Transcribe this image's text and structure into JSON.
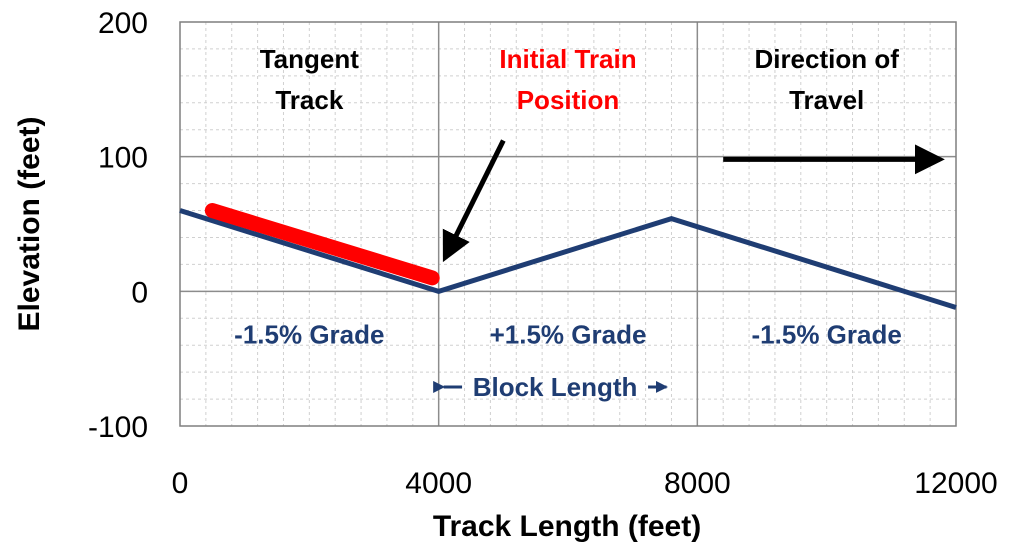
{
  "chart_data": {
    "type": "line",
    "xlabel": "Track Length (feet)",
    "ylabel": "Elevation (feet)",
    "xlim": [
      0,
      12000
    ],
    "ylim": [
      -100,
      200
    ],
    "x_ticks": [
      0,
      4000,
      8000,
      12000
    ],
    "x_tick_labels": [
      "0",
      "4000",
      "8000",
      "12000"
    ],
    "y_ticks": [
      -100,
      0,
      100,
      200
    ],
    "y_tick_labels": [
      "-100",
      "0",
      "100",
      "200"
    ],
    "grid": true,
    "minor_grid": true,
    "vertical_dividers": [
      4000,
      8000
    ],
    "series": [
      {
        "role": "track",
        "color": "#1f3d73",
        "x": [
          0,
          4000,
          7600,
          12000
        ],
        "y": [
          60,
          0,
          54,
          -12
        ]
      },
      {
        "role": "train",
        "color": "#ff0000",
        "x": [
          500,
          3900
        ],
        "y": [
          60,
          10
        ]
      }
    ],
    "annotations": {
      "region_titles": [
        {
          "x": 2000,
          "y": 166,
          "lines": [
            "Tangent",
            "Track"
          ],
          "color": "#000000"
        },
        {
          "x": 6000,
          "y": 166,
          "lines": [
            "Initial Train",
            "Position"
          ],
          "color": "#ff0000"
        },
        {
          "x": 10000,
          "y": 166,
          "lines": [
            "Direction of",
            "Travel"
          ],
          "color": "#000000"
        }
      ],
      "grade_labels": [
        {
          "x": 2000,
          "y": -32,
          "text": "-1.5% Grade"
        },
        {
          "x": 6000,
          "y": -32,
          "text": "+1.5% Grade"
        },
        {
          "x": 10000,
          "y": -32,
          "text": "-1.5% Grade"
        }
      ],
      "block_length": {
        "text": "Block Length",
        "x_start": 4000,
        "x_end": 7600,
        "y": -71,
        "color": "#1f3d73"
      },
      "arrows": [
        {
          "role": "initial-position",
          "from": [
            5000,
            112
          ],
          "to": [
            4100,
            25
          ],
          "color": "#000000"
        },
        {
          "role": "direction-of-travel",
          "from": [
            8400,
            98
          ],
          "to": [
            11750,
            98
          ],
          "color": "#000000"
        }
      ]
    }
  }
}
